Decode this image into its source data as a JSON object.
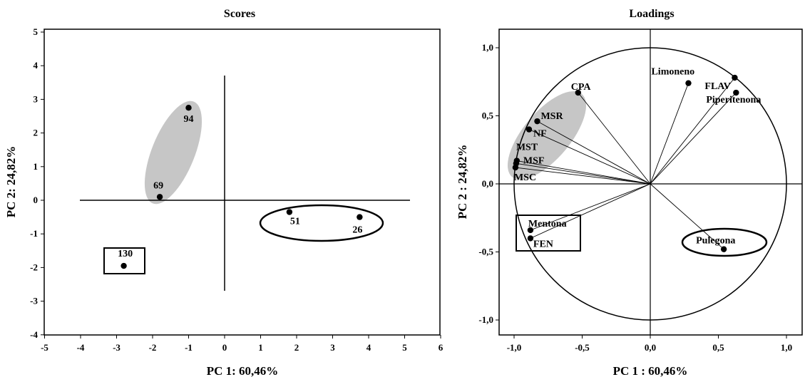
{
  "chart_data": [
    {
      "type": "scatter",
      "title": "Scores",
      "xlabel": "PC 1: 60,46%",
      "ylabel": "PC 2: 24,82%",
      "xlim": [
        -5,
        6
      ],
      "ylim": [
        -4,
        5
      ],
      "xticks": [
        "-5",
        "-4",
        "-3",
        "-2",
        "-1",
        "0",
        "1",
        "2",
        "3",
        "4",
        "5",
        "6"
      ],
      "yticks": [
        "-4",
        "-3",
        "-2",
        "-1",
        "0",
        "1",
        "2",
        "3",
        "4",
        "5"
      ],
      "points": [
        {
          "label": "94",
          "x": -1.0,
          "y": 2.75
        },
        {
          "label": "69",
          "x": -1.8,
          "y": 0.1
        },
        {
          "label": "51",
          "x": 1.8,
          "y": -0.35
        },
        {
          "label": "26",
          "x": 3.75,
          "y": -0.5
        },
        {
          "label": "130",
          "x": -2.8,
          "y": -1.95
        }
      ],
      "groups": [
        {
          "shape": "shaded-ellipse",
          "members": [
            "94",
            "69"
          ],
          "color": "#c6c6c6"
        },
        {
          "shape": "ellipse",
          "members": [
            "51",
            "26"
          ]
        },
        {
          "shape": "rectangle",
          "members": [
            "130"
          ]
        }
      ]
    },
    {
      "type": "scatter",
      "title": "Loadings",
      "xlabel": "PC 1 : 60,46%",
      "ylabel": "PC 2 : 24,82%",
      "xlim": [
        -1.1,
        1.1
      ],
      "ylim": [
        -1.1,
        1.1
      ],
      "xticks": [
        "-1,0",
        "-0,5",
        "0,0",
        "0,5",
        "1,0"
      ],
      "yticks": [
        "-1,0",
        "-0,5",
        "0,0",
        "0,5",
        "1,0"
      ],
      "unit_circle": true,
      "points": [
        {
          "label": "Limoneno",
          "x": 0.28,
          "y": 0.74
        },
        {
          "label": "FLAV",
          "x": 0.62,
          "y": 0.78
        },
        {
          "label": "Piperitenona",
          "x": 0.63,
          "y": 0.67
        },
        {
          "label": "CPA",
          "x": -0.53,
          "y": 0.67
        },
        {
          "label": "MSR",
          "x": -0.83,
          "y": 0.46
        },
        {
          "label": "NF",
          "x": -0.89,
          "y": 0.4
        },
        {
          "label": "MST",
          "x": -0.98,
          "y": 0.17
        },
        {
          "label": "MSF",
          "x": -0.985,
          "y": 0.15
        },
        {
          "label": "MSC",
          "x": -0.99,
          "y": 0.12
        },
        {
          "label": "Mentona",
          "x": -0.88,
          "y": -0.34
        },
        {
          "label": "FEN",
          "x": -0.88,
          "y": -0.4
        },
        {
          "label": "Pulegona",
          "x": 0.54,
          "y": -0.48
        }
      ],
      "groups": [
        {
          "shape": "shaded-ellipse",
          "members": [
            "CPA",
            "MSR",
            "NF",
            "MST",
            "MSF",
            "MSC"
          ],
          "color": "#c6c6c6"
        },
        {
          "shape": "rectangle",
          "members": [
            "Mentona",
            "FEN"
          ]
        },
        {
          "shape": "ellipse",
          "members": [
            "Pulegona"
          ]
        }
      ]
    }
  ]
}
